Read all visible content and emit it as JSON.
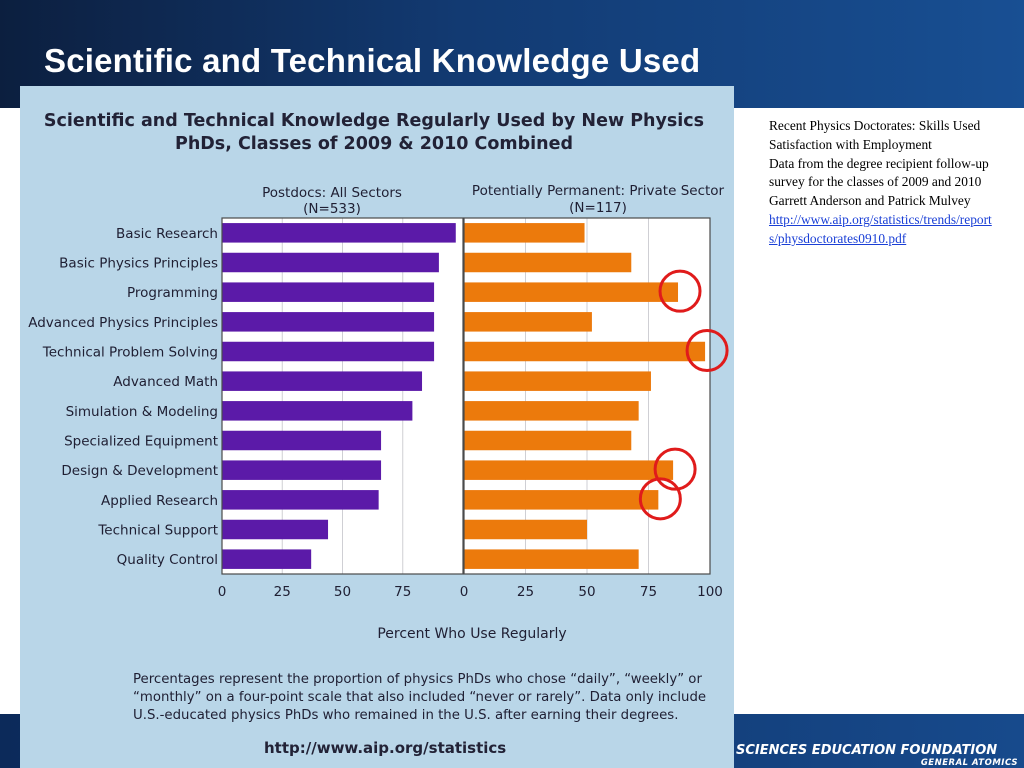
{
  "slide": {
    "title": "Scientific and Technical Knowledge Used",
    "footer_line1": "SCIENCES EDUCATION FOUNDATION",
    "footer_line2": "GENERAL ATOMICS"
  },
  "notes": {
    "line1": "Recent Physics Doctorates:  Skills Used   Satisfaction with Employment",
    "line2": "Data from the degree recipient follow-up survey for the classes of 2009 and 2010",
    "line3": "Garrett Anderson and Patrick Mulvey",
    "link": "http://www.aip.org/statistics/trends/reports/physdoctorates0910.pdf"
  },
  "colors": {
    "postdoc": "#5b1aa8",
    "private": "#ec7a0c",
    "circle": "#e01b1b",
    "frame": "#b9d6e8"
  },
  "chart_data": {
    "type": "bar",
    "orientation": "horizontal",
    "title_line1": "Scientific and Technical Knowledge Regularly Used by New Physics",
    "title_line2": "PhDs, Classes of 2009 & 2010 Combined",
    "categories": [
      "Basic Research",
      "Basic Physics Principles",
      "Programming",
      "Advanced Physics Principles",
      "Technical Problem Solving",
      "Advanced Math",
      "Simulation & Modeling",
      "Specialized Equipment",
      "Design & Development",
      "Applied Research",
      "Technical Support",
      "Quality Control"
    ],
    "series": [
      {
        "name": "Postdocs: All Sectors",
        "n_label": "(N=533)",
        "values": [
          97,
          90,
          88,
          88,
          88,
          83,
          79,
          66,
          66,
          65,
          44,
          37
        ]
      },
      {
        "name": "Potentially Permanent: Private Sector",
        "n_label": "(N=117)",
        "values": [
          49,
          68,
          87,
          52,
          98,
          76,
          71,
          68,
          85,
          79,
          50,
          71
        ]
      }
    ],
    "highlighted_private": [
      "Programming",
      "Technical Problem Solving",
      "Design & Development",
      "Applied Research"
    ],
    "xlim": [
      0,
      100
    ],
    "xticks": [
      0,
      25,
      50,
      75,
      100
    ],
    "xlabel": "Percent Who Use Regularly",
    "footnote_lines": [
      "Percentages represent the proportion of physics PhDs who chose “daily”, “weekly” or",
      "“monthly” on a four-point scale that also included “never or rarely”.  Data only include",
      "U.S.-educated physics PhDs who remained in the U.S. after earning their degrees."
    ],
    "source": "http://www.aip.org/statistics"
  }
}
